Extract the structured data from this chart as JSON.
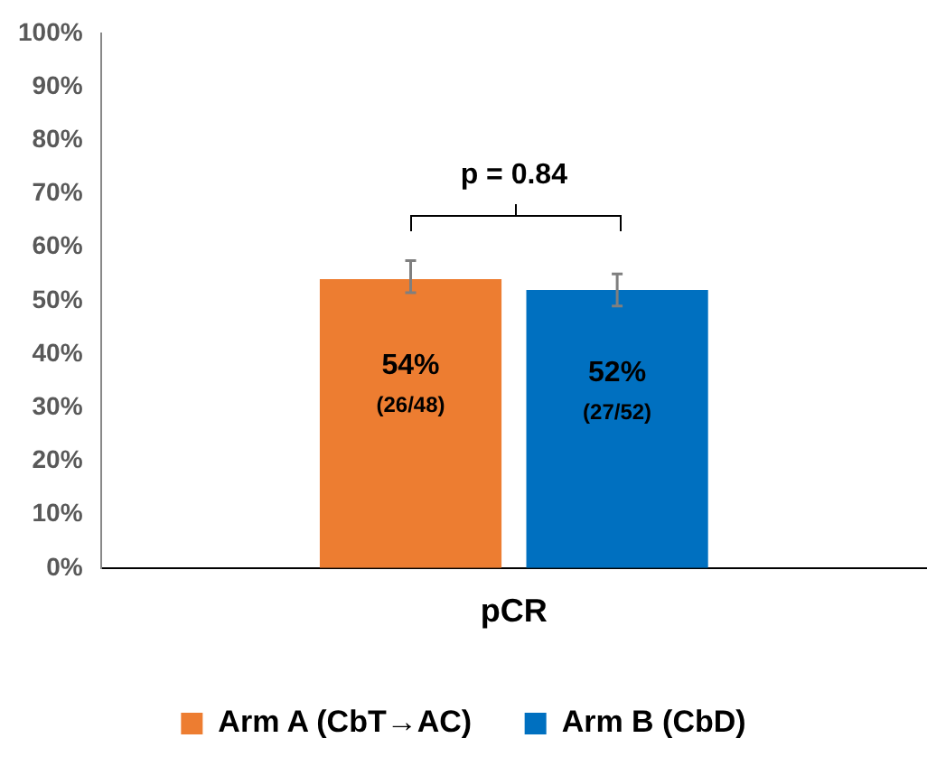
{
  "chart_data": {
    "type": "bar",
    "categories": [
      "pCR"
    ],
    "series": [
      {
        "name": "Arm A (CbT→AC)",
        "color": "#ed7d31",
        "values": [
          54
        ],
        "errors": [
          [
            51.5,
            57.5
          ]
        ],
        "value_labels": [
          "54%\n(26/48)"
        ]
      },
      {
        "name": "Arm B (CbD)",
        "color": "#0070c0",
        "values": [
          52
        ],
        "errors": [
          [
            49,
            55
          ]
        ],
        "value_labels": [
          "52%\n(27/52)"
        ]
      }
    ],
    "ylim": [
      0,
      100
    ],
    "yticks": [
      {
        "value": 0,
        "label": "0%"
      },
      {
        "value": 10,
        "label": "10%"
      },
      {
        "value": 20,
        "label": "20%"
      },
      {
        "value": 30,
        "label": "30%"
      },
      {
        "value": 40,
        "label": "40%"
      },
      {
        "value": 50,
        "label": "50%"
      },
      {
        "value": 60,
        "label": "60%"
      },
      {
        "value": 70,
        "label": "70%"
      },
      {
        "value": 80,
        "label": "80%"
      },
      {
        "value": 90,
        "label": "90%"
      },
      {
        "value": 100,
        "label": "100%"
      }
    ],
    "annotations": [
      "p = 0.84"
    ],
    "grid": false,
    "legend": "bottom"
  }
}
